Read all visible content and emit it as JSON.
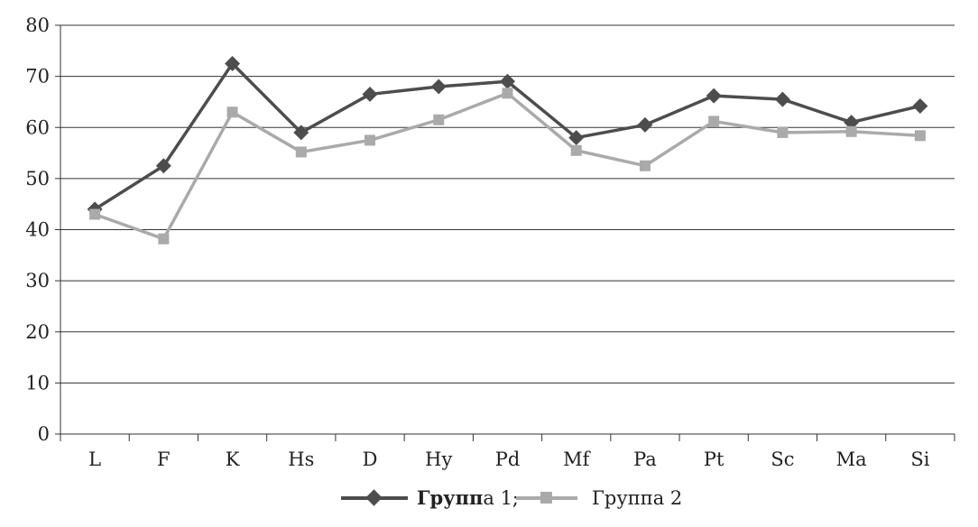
{
  "chart_data": {
    "type": "line",
    "title": "",
    "xlabel": "",
    "ylabel": "",
    "categories": [
      "L",
      "F",
      "K",
      "Hs",
      "D",
      "Hy",
      "Pd",
      "Mf",
      "Pa",
      "Pt",
      "Sc",
      "Ma",
      "Si"
    ],
    "ylim": [
      0,
      80
    ],
    "yticks": [
      0,
      10,
      20,
      30,
      40,
      50,
      60,
      70,
      80
    ],
    "grid": true,
    "legend_position": "bottom",
    "series": [
      {
        "name": "Группа 1;",
        "name_bold_part": "Групп",
        "name_rest": "а 1;",
        "color": "#4d4d4d",
        "marker": "diamond",
        "values": [
          44,
          52.5,
          72.5,
          59,
          66.5,
          68,
          69,
          58,
          60.5,
          66.2,
          65.5,
          61,
          64.2
        ]
      },
      {
        "name": "Группа 2",
        "color": "#aaaaaa",
        "marker": "square",
        "values": [
          43,
          38.2,
          63,
          55.2,
          57.5,
          61.5,
          66.7,
          55.5,
          52.5,
          61.2,
          59,
          59.2,
          58.4
        ]
      }
    ]
  }
}
